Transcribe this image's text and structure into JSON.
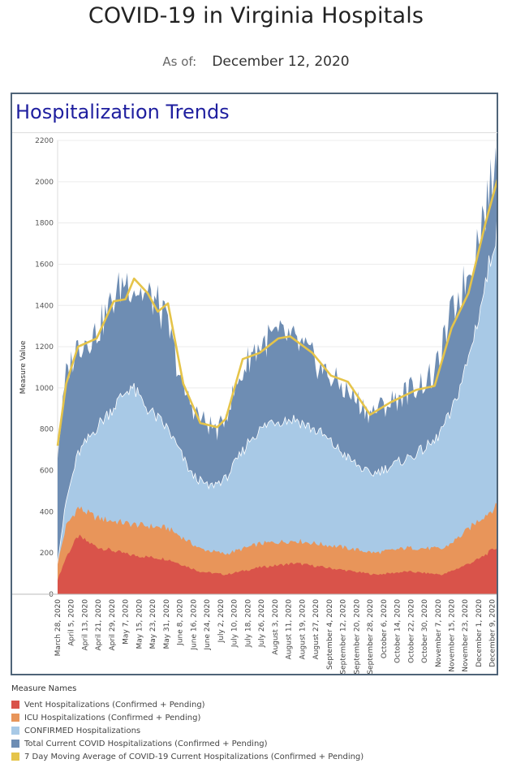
{
  "page": {
    "title": "COVID-19 in Virginia Hospitals",
    "asof_label": "As of:",
    "asof_date": "December 12, 2020"
  },
  "panel": {
    "title": "Hospitalization Trends"
  },
  "chart_data": {
    "type": "area",
    "ylabel": "Measure Value",
    "xlabel": "",
    "ylim": [
      0,
      2200
    ],
    "y_ticks": [
      0,
      200,
      400,
      600,
      800,
      1000,
      1200,
      1400,
      1600,
      1800,
      2000,
      2200
    ],
    "x_start": "2020-03-28",
    "x_end": "2020-12-12",
    "x_tick_labels": [
      "March 28, 2020",
      "April 5, 2020",
      "April 13, 2020",
      "April 21, 2020",
      "April 29, 2020",
      "May 7, 2020",
      "May 15, 2020",
      "May 23, 2020",
      "May 31, 2020",
      "June 8, 2020",
      "June 16, 2020",
      "June 24, 2020",
      "July 2, 2020",
      "July 10, 2020",
      "July 18, 2020",
      "July 26, 2020",
      "August 3, 2020",
      "August 11, 2020",
      "August 19, 2020",
      "August 27, 2020",
      "September 4, 2020",
      "September 12, 2020",
      "September 20, 2020",
      "September 28, 2020",
      "October 6, 2020",
      "October 14, 2020",
      "October 22, 2020",
      "October 30, 2020",
      "November 7, 2020",
      "November 15, 2020",
      "November 23, 2020",
      "December 1, 2020",
      "December 9, 2020"
    ],
    "x_tick_dates": [
      "2020-03-28",
      "2020-04-05",
      "2020-04-13",
      "2020-04-21",
      "2020-04-29",
      "2020-05-07",
      "2020-05-15",
      "2020-05-23",
      "2020-05-31",
      "2020-06-08",
      "2020-06-16",
      "2020-06-24",
      "2020-07-02",
      "2020-07-10",
      "2020-07-18",
      "2020-07-26",
      "2020-08-03",
      "2020-08-11",
      "2020-08-19",
      "2020-08-27",
      "2020-09-04",
      "2020-09-12",
      "2020-09-20",
      "2020-09-28",
      "2020-10-06",
      "2020-10-14",
      "2020-10-22",
      "2020-10-30",
      "2020-11-07",
      "2020-11-15",
      "2020-11-23",
      "2020-12-01",
      "2020-12-09"
    ],
    "legend_title": "Measure Names",
    "series": [
      {
        "name": "Vent Hospitalizations (Confirmed + Pending)",
        "color": "#d9534a",
        "x": [
          "2020-03-28",
          "2020-04-02",
          "2020-04-09",
          "2020-04-20",
          "2020-05-10",
          "2020-06-01",
          "2020-06-20",
          "2020-07-05",
          "2020-07-25",
          "2020-08-15",
          "2020-09-10",
          "2020-10-01",
          "2020-10-20",
          "2020-11-10",
          "2020-11-20",
          "2020-12-01",
          "2020-12-12"
        ],
        "values": [
          70,
          180,
          280,
          230,
          190,
          170,
          110,
          95,
          130,
          150,
          120,
          95,
          110,
          95,
          130,
          170,
          230
        ]
      },
      {
        "name": "ICU Hospitalizations (Confirmed + Pending)",
        "color": "#e8955a",
        "x": [
          "2020-03-28",
          "2020-04-02",
          "2020-04-09",
          "2020-04-20",
          "2020-05-10",
          "2020-06-01",
          "2020-06-20",
          "2020-07-05",
          "2020-07-25",
          "2020-08-15",
          "2020-09-10",
          "2020-10-01",
          "2020-10-20",
          "2020-11-10",
          "2020-11-20",
          "2020-12-01",
          "2020-12-12"
        ],
        "values": [
          150,
          330,
          420,
          370,
          340,
          320,
          220,
          195,
          245,
          260,
          230,
          200,
          225,
          220,
          280,
          360,
          430
        ]
      },
      {
        "name": "CONFIRMED Hospitalizations",
        "color": "#a8c9e6",
        "x": [
          "2020-03-28",
          "2020-04-02",
          "2020-04-09",
          "2020-04-20",
          "2020-04-30",
          "2020-05-10",
          "2020-05-20",
          "2020-06-01",
          "2020-06-15",
          "2020-06-25",
          "2020-07-05",
          "2020-07-20",
          "2020-08-01",
          "2020-08-15",
          "2020-08-30",
          "2020-09-15",
          "2020-09-28",
          "2020-10-10",
          "2020-10-25",
          "2020-11-05",
          "2020-11-15",
          "2020-11-25",
          "2020-12-05",
          "2020-12-12"
        ],
        "values": [
          160,
          450,
          680,
          810,
          910,
          1010,
          900,
          800,
          580,
          520,
          560,
          760,
          840,
          850,
          780,
          660,
          580,
          620,
          680,
          740,
          880,
          1140,
          1500,
          1800
        ]
      },
      {
        "name": "Total Current COVID Hospitalizations (Confirmed + Pending)",
        "color": "#6e8db3",
        "x": [
          "2020-03-28",
          "2020-04-02",
          "2020-04-09",
          "2020-04-20",
          "2020-04-30",
          "2020-05-07",
          "2020-05-15",
          "2020-05-25",
          "2020-06-01",
          "2020-06-10",
          "2020-06-20",
          "2020-07-01",
          "2020-07-10",
          "2020-07-20",
          "2020-08-01",
          "2020-08-10",
          "2020-08-20",
          "2020-09-01",
          "2020-09-15",
          "2020-09-28",
          "2020-10-10",
          "2020-10-25",
          "2020-11-05",
          "2020-11-15",
          "2020-11-25",
          "2020-12-05",
          "2020-12-12"
        ],
        "values": [
          680,
          1060,
          1210,
          1270,
          1430,
          1530,
          1470,
          1420,
          1300,
          990,
          850,
          790,
          980,
          1170,
          1250,
          1250,
          1190,
          1080,
          980,
          880,
          930,
          1010,
          1060,
          1360,
          1560,
          1880,
          2110
        ]
      },
      {
        "name": "7 Day Moving Average of COVID-19 Current Hospitalizations (Confirmed + Pending)",
        "color": "#e5c44a",
        "x": [
          "2020-03-28",
          "2020-04-02",
          "2020-04-09",
          "2020-04-20",
          "2020-04-30",
          "2020-05-07",
          "2020-05-12",
          "2020-05-20",
          "2020-05-26",
          "2020-06-01",
          "2020-06-10",
          "2020-06-20",
          "2020-06-30",
          "2020-07-05",
          "2020-07-15",
          "2020-07-25",
          "2020-08-05",
          "2020-08-12",
          "2020-08-25",
          "2020-09-05",
          "2020-09-15",
          "2020-09-28",
          "2020-10-10",
          "2020-10-25",
          "2020-11-05",
          "2020-11-15",
          "2020-11-25",
          "2020-12-05",
          "2020-12-12"
        ],
        "values": [
          720,
          1020,
          1200,
          1240,
          1420,
          1430,
          1530,
          1460,
          1370,
          1410,
          1020,
          830,
          810,
          850,
          1140,
          1170,
          1240,
          1250,
          1170,
          1060,
          1030,
          870,
          930,
          990,
          1010,
          1290,
          1460,
          1800,
          2010
        ]
      }
    ]
  }
}
